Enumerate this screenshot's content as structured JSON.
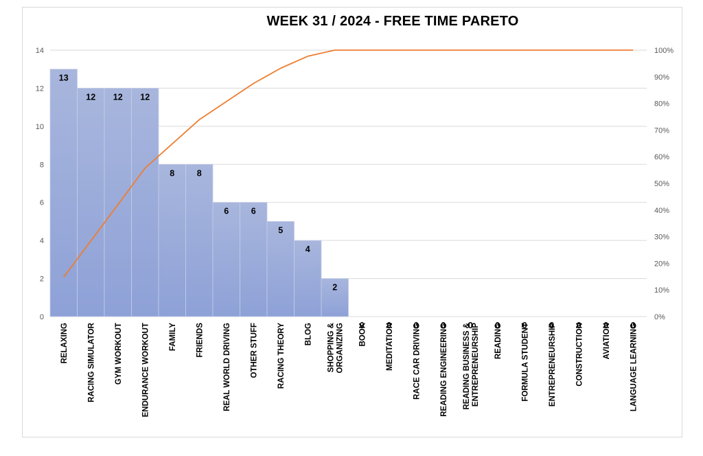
{
  "chart_data": {
    "type": "bar",
    "title": "WEEK 31 / 2024  - FREE TIME PARETO",
    "categories": [
      [
        "RELAXING"
      ],
      [
        "RACING SIMULATOR"
      ],
      [
        "GYM WORKOUT"
      ],
      [
        "ENDURANCE WORKOUT"
      ],
      [
        "FAMILY"
      ],
      [
        "FRIENDS"
      ],
      [
        "REAL WORLD DRIVING"
      ],
      [
        "OTHER STUFF"
      ],
      [
        "RACING THEORY"
      ],
      [
        "BLOG"
      ],
      [
        "SHOPPING &",
        "ORGANIZING"
      ],
      [
        "BOOK"
      ],
      [
        "MEDITATION"
      ],
      [
        "RACE CAR DRIVING"
      ],
      [
        "READING ENGINEERING"
      ],
      [
        "READING BUSINESS &",
        "ENTREPRENEURSHIP"
      ],
      [
        "READING"
      ],
      [
        "FORMULA STUDENT"
      ],
      [
        "ENTREPRENEURSHIP"
      ],
      [
        "CONSTRUCTION"
      ],
      [
        "AVIATION"
      ],
      [
        "LANGUAGE LEARNING"
      ]
    ],
    "values": [
      13,
      12,
      12,
      12,
      8,
      8,
      6,
      6,
      5,
      4,
      2,
      0,
      0,
      0,
      0,
      0,
      0,
      0,
      0,
      0,
      0,
      0
    ],
    "cumulative_percent": [
      14.8,
      28.4,
      42.0,
      55.7,
      64.8,
      73.9,
      80.7,
      87.5,
      93.2,
      97.7,
      100,
      100,
      100,
      100,
      100,
      100,
      100,
      100,
      100,
      100,
      100,
      100
    ],
    "ylim": [
      0,
      14
    ],
    "y_ticks": [
      "0",
      "2",
      "4",
      "6",
      "8",
      "10",
      "12",
      "14"
    ],
    "y2lim": [
      0,
      100
    ],
    "y2_ticks": [
      "0%",
      "10%",
      "20%",
      "30%",
      "40%",
      "50%",
      "60%",
      "70%",
      "80%",
      "90%",
      "100%"
    ],
    "grid": true,
    "colors": {
      "bar_top": "#a8b6dd",
      "bar_bottom": "#8ea1d7",
      "bar_border": "#c5cfe9",
      "line": "#ed7d31",
      "grid": "#d9d9d9"
    }
  }
}
